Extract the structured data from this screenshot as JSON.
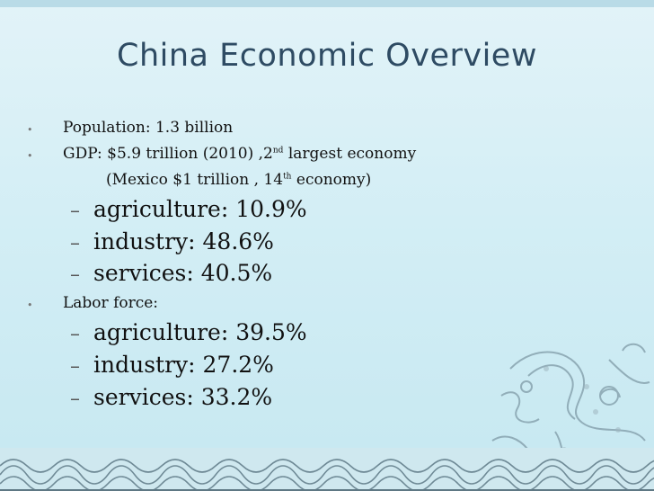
{
  "title": "China Economic Overview",
  "bullets": {
    "population": "Population: 1.3 billion",
    "gdp": {
      "text_a": "GDP: $5.9 trillion (2010) ,2",
      "sup_a": "nd",
      "text_b": "  largest economy"
    },
    "mexico": {
      "text_a": "(Mexico $1 trillion , 14",
      "sup_a": "th",
      "text_b": "  economy)"
    },
    "gdp_breakdown": [
      "agriculture: 10.9%",
      "industry: 48.6%",
      "services: 40.5%"
    ],
    "labor": "Labor force:",
    "labor_breakdown": [
      "agriculture: 39.5%",
      "industry: 27.2%",
      "services: 33.2%"
    ]
  },
  "colors": {
    "title": "#2e4b63",
    "background": "#d3eef5"
  },
  "decorations": [
    "dragon-illustration",
    "wave-pattern-border"
  ]
}
